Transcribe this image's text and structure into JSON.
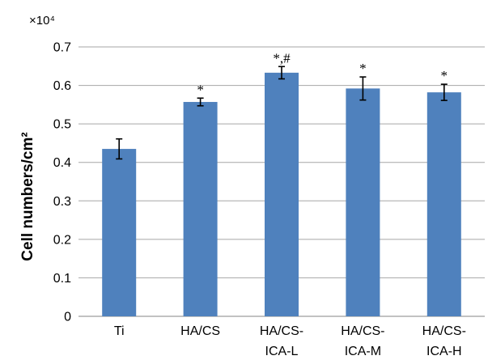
{
  "chart_data": {
    "type": "bar",
    "title": "",
    "xlabel": "",
    "ylabel": "Cell numbers/cm²",
    "y_multiplier": "×10⁴",
    "ylim": [
      0,
      0.7
    ],
    "yticks": [
      "0",
      "0.1",
      "0.2",
      "0.3",
      "0.4",
      "0.5",
      "0.6",
      "0.7"
    ],
    "grid": true,
    "legend": "none",
    "bar_color": "#4f81bd",
    "categories": [
      [
        "Ti"
      ],
      [
        "HA/CS"
      ],
      [
        "HA/CS-",
        "ICA-L"
      ],
      [
        "HA/CS-",
        "ICA-M"
      ],
      [
        "HA/CS-",
        "ICA-H"
      ]
    ],
    "values": [
      0.435,
      0.557,
      0.633,
      0.592,
      0.582
    ],
    "errors": [
      0.026,
      0.01,
      0.016,
      0.03,
      0.021
    ],
    "annotations": [
      "",
      "*",
      "*,#",
      "*",
      "*"
    ]
  }
}
